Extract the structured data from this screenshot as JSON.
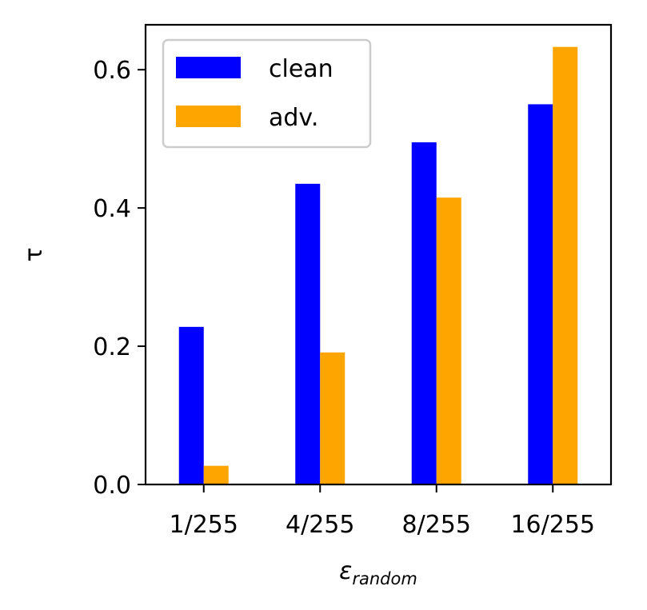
{
  "chart_data": {
    "type": "bar",
    "categories": [
      "1/255",
      "4/255",
      "8/255",
      "16/255"
    ],
    "series": [
      {
        "name": "clean",
        "color": "#0000ff",
        "values": [
          0.228,
          0.435,
          0.495,
          0.55
        ]
      },
      {
        "name": "adv.",
        "color": "#ffa500",
        "values": [
          0.027,
          0.191,
          0.415,
          0.633
        ]
      }
    ],
    "title": "",
    "xlabel": "ε",
    "xlabel_sub": "random",
    "ylabel": "τ",
    "ylim": [
      0,
      0.665
    ],
    "yticks": [
      0.0,
      0.2,
      0.4,
      0.6
    ],
    "ytick_labels": [
      "0.0",
      "0.2",
      "0.4",
      "0.6"
    ],
    "legend_position": "top-left",
    "grid": false
  }
}
